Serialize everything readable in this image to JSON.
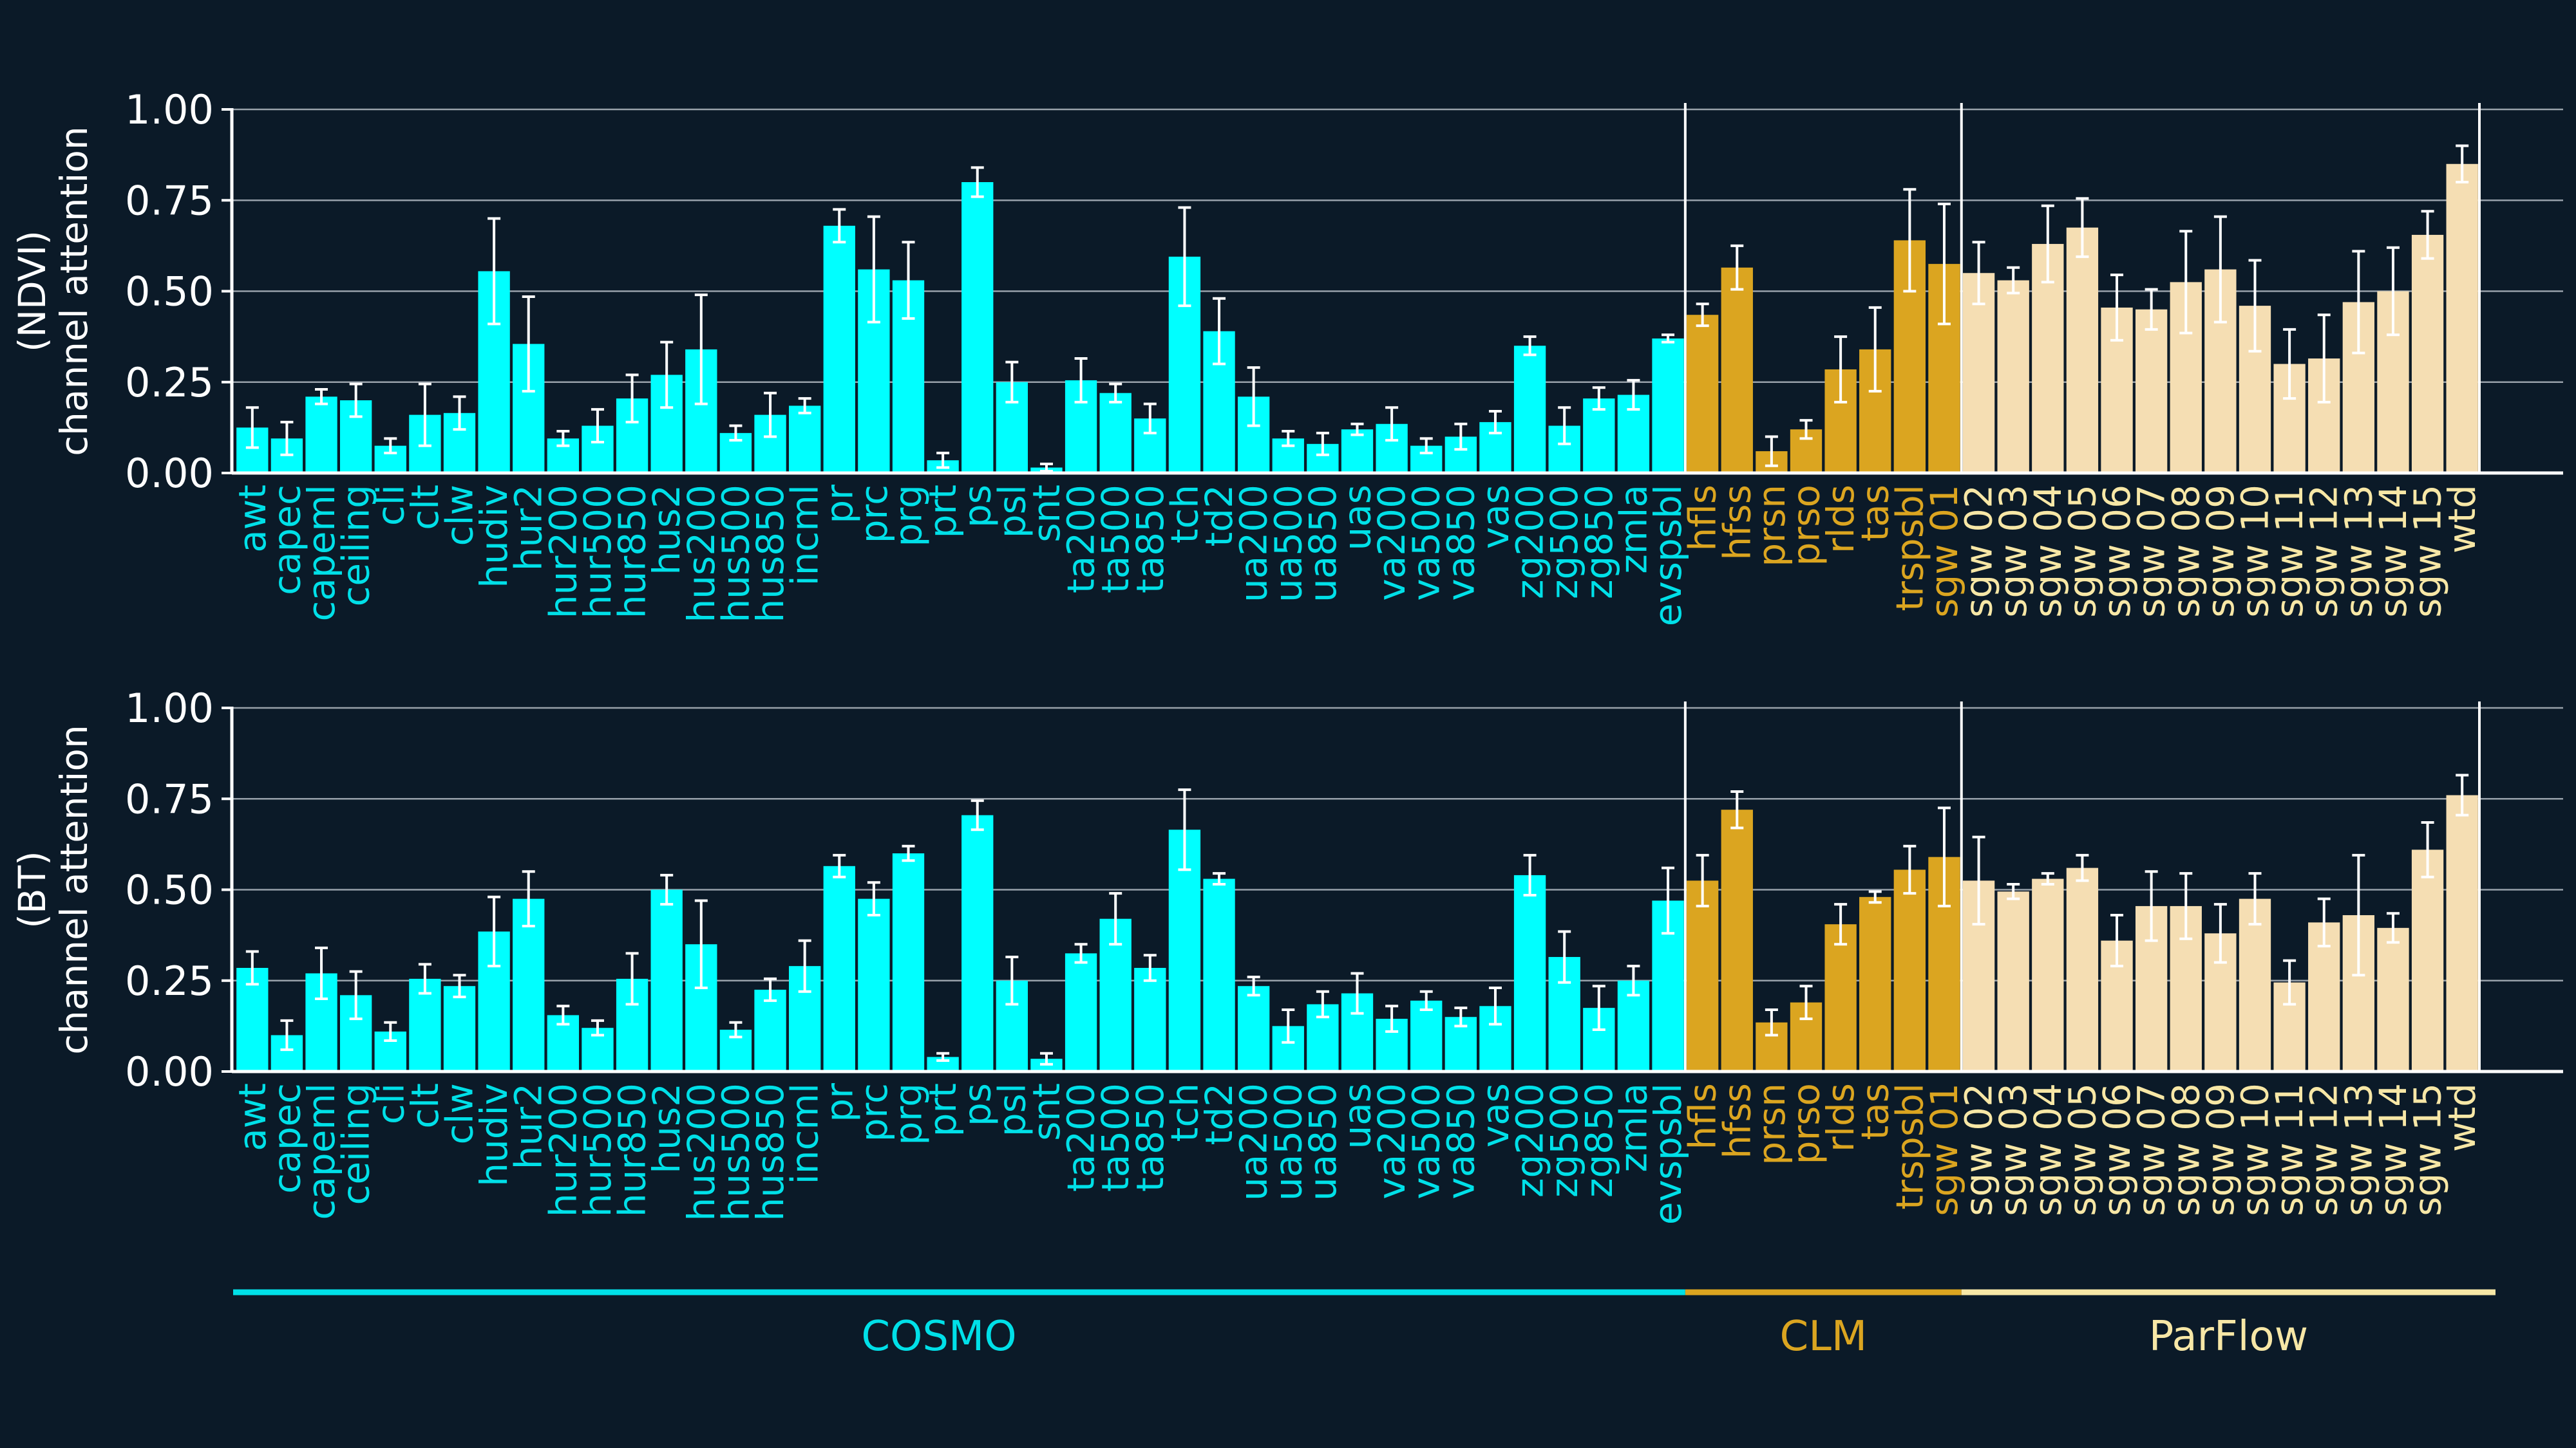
{
  "colors": {
    "background": "#0b1a28",
    "axis": "#ffffff",
    "grid": "#c8ced6",
    "errorbar": "#ffffff",
    "COSMO": "#00ffff",
    "CLM": "#dba520",
    "ParFlow": "#f5deb3",
    "cosmo_label": "#00e0e8",
    "clm_label": "#dba520",
    "parflow_label": "#f7e7a6"
  },
  "groups": [
    {
      "name": "COSMO",
      "start": 0,
      "end": 41,
      "color_key": "COSMO",
      "label_color_key": "cosmo_label"
    },
    {
      "name": "CLM",
      "start": 42,
      "end": 49,
      "color_key": "CLM",
      "label_color_key": "clm_label"
    },
    {
      "name": "ParFlow",
      "start": 50,
      "end": 65,
      "color_key": "ParFlow",
      "label_color_key": "parflow_label"
    }
  ],
  "chart_data": [
    {
      "type": "bar",
      "id": "ndvi",
      "ylabel_lines": [
        "(NDVI)",
        "channel attention"
      ],
      "ylim": [
        0,
        1
      ],
      "yticks": [
        "0.00",
        "0.25",
        "0.50",
        "0.75",
        "1.00"
      ],
      "grid": true,
      "categories": [
        "awt",
        "capec",
        "capeml",
        "ceiling",
        "cli",
        "clt",
        "clw",
        "hudiv",
        "hur2",
        "hur200",
        "hur500",
        "hur850",
        "hus2",
        "hus200",
        "hus500",
        "hus850",
        "incml",
        "pr",
        "prc",
        "prg",
        "prt",
        "ps",
        "psl",
        "snt",
        "ta200",
        "ta500",
        "ta850",
        "tch",
        "td2",
        "ua200",
        "ua500",
        "ua850",
        "uas",
        "va200",
        "va500",
        "va850",
        "vas",
        "zg200",
        "zg500",
        "zg850",
        "zmla",
        "evspsbl",
        "hfls",
        "hfss",
        "prsn",
        "prso",
        "rlds",
        "tas",
        "trspsbl",
        "sgw 01",
        "sgw 02",
        "sgw 03",
        "sgw 04",
        "sgw 05",
        "sgw 06",
        "sgw 07",
        "sgw 08",
        "sgw 09",
        "sgw 10",
        "sgw 11",
        "sgw 12",
        "sgw 13",
        "sgw 14",
        "sgw 15",
        "wtd"
      ],
      "values": [
        0.125,
        0.095,
        0.21,
        0.2,
        0.075,
        0.16,
        0.165,
        0.555,
        0.355,
        0.095,
        0.13,
        0.205,
        0.27,
        0.34,
        0.11,
        0.16,
        0.185,
        0.68,
        0.56,
        0.53,
        0.035,
        0.8,
        0.25,
        0.015,
        0.255,
        0.22,
        0.15,
        0.595,
        0.39,
        0.21,
        0.095,
        0.08,
        0.12,
        0.135,
        0.075,
        0.1,
        0.14,
        0.35,
        0.13,
        0.205,
        0.215,
        0.37,
        0.435,
        0.565,
        0.06,
        0.12,
        0.285,
        0.34,
        0.64,
        0.575,
        0.55,
        0.53,
        0.63,
        0.675,
        0.455,
        0.45,
        0.525,
        0.56,
        0.46,
        0.3,
        0.315,
        0.47,
        0.5,
        0.655,
        0.85
      ],
      "errors": [
        0.055,
        0.045,
        0.02,
        0.045,
        0.02,
        0.085,
        0.045,
        0.145,
        0.13,
        0.02,
        0.045,
        0.065,
        0.09,
        0.15,
        0.02,
        0.06,
        0.02,
        0.045,
        0.145,
        0.105,
        0.02,
        0.04,
        0.055,
        0.01,
        0.06,
        0.025,
        0.04,
        0.135,
        0.09,
        0.08,
        0.02,
        0.03,
        0.015,
        0.045,
        0.02,
        0.035,
        0.03,
        0.025,
        0.05,
        0.03,
        0.04,
        0.01,
        0.03,
        0.06,
        0.04,
        0.025,
        0.09,
        0.115,
        0.14,
        0.165,
        0.085,
        0.035,
        0.105,
        0.08,
        0.09,
        0.055,
        0.14,
        0.145,
        0.125,
        0.095,
        0.12,
        0.14,
        0.12,
        0.065,
        0.05
      ]
    },
    {
      "type": "bar",
      "id": "bt",
      "ylabel_lines": [
        "(BT)",
        "channel attention"
      ],
      "ylim": [
        0,
        1
      ],
      "yticks": [
        "0.00",
        "0.25",
        "0.50",
        "0.75",
        "1.00"
      ],
      "grid": true,
      "categories": [
        "awt",
        "capec",
        "capeml",
        "ceiling",
        "cli",
        "clt",
        "clw",
        "hudiv",
        "hur2",
        "hur200",
        "hur500",
        "hur850",
        "hus2",
        "hus200",
        "hus500",
        "hus850",
        "incml",
        "pr",
        "prc",
        "prg",
        "prt",
        "ps",
        "psl",
        "snt",
        "ta200",
        "ta500",
        "ta850",
        "tch",
        "td2",
        "ua200",
        "ua500",
        "ua850",
        "uas",
        "va200",
        "va500",
        "va850",
        "vas",
        "zg200",
        "zg500",
        "zg850",
        "zmla",
        "evspsbl",
        "hfls",
        "hfss",
        "prsn",
        "prso",
        "rlds",
        "tas",
        "trspsbl",
        "sgw 01",
        "sgw 02",
        "sgw 03",
        "sgw 04",
        "sgw 05",
        "sgw 06",
        "sgw 07",
        "sgw 08",
        "sgw 09",
        "sgw 10",
        "sgw 11",
        "sgw 12",
        "sgw 13",
        "sgw 14",
        "sgw 15",
        "wtd"
      ],
      "values": [
        0.285,
        0.1,
        0.27,
        0.21,
        0.11,
        0.255,
        0.235,
        0.385,
        0.475,
        0.155,
        0.12,
        0.255,
        0.5,
        0.35,
        0.115,
        0.225,
        0.29,
        0.565,
        0.475,
        0.6,
        0.04,
        0.705,
        0.25,
        0.035,
        0.325,
        0.42,
        0.285,
        0.665,
        0.53,
        0.235,
        0.125,
        0.185,
        0.215,
        0.145,
        0.195,
        0.15,
        0.18,
        0.54,
        0.315,
        0.175,
        0.25,
        0.47,
        0.525,
        0.72,
        0.135,
        0.19,
        0.405,
        0.48,
        0.555,
        0.59,
        0.525,
        0.495,
        0.53,
        0.56,
        0.36,
        0.455,
        0.455,
        0.38,
        0.475,
        0.245,
        0.41,
        0.43,
        0.395,
        0.61,
        0.76
      ],
      "errors": [
        0.045,
        0.04,
        0.07,
        0.065,
        0.025,
        0.04,
        0.03,
        0.095,
        0.075,
        0.025,
        0.02,
        0.07,
        0.04,
        0.12,
        0.02,
        0.03,
        0.07,
        0.03,
        0.045,
        0.02,
        0.01,
        0.04,
        0.065,
        0.015,
        0.025,
        0.07,
        0.035,
        0.11,
        0.015,
        0.025,
        0.045,
        0.035,
        0.055,
        0.035,
        0.025,
        0.025,
        0.05,
        0.055,
        0.07,
        0.06,
        0.04,
        0.09,
        0.07,
        0.05,
        0.035,
        0.045,
        0.055,
        0.015,
        0.065,
        0.135,
        0.12,
        0.02,
        0.015,
        0.035,
        0.07,
        0.095,
        0.09,
        0.08,
        0.07,
        0.06,
        0.065,
        0.165,
        0.04,
        0.075,
        0.055
      ]
    }
  ],
  "legend": {
    "labels": [
      "COSMO",
      "CLM",
      "ParFlow"
    ]
  }
}
